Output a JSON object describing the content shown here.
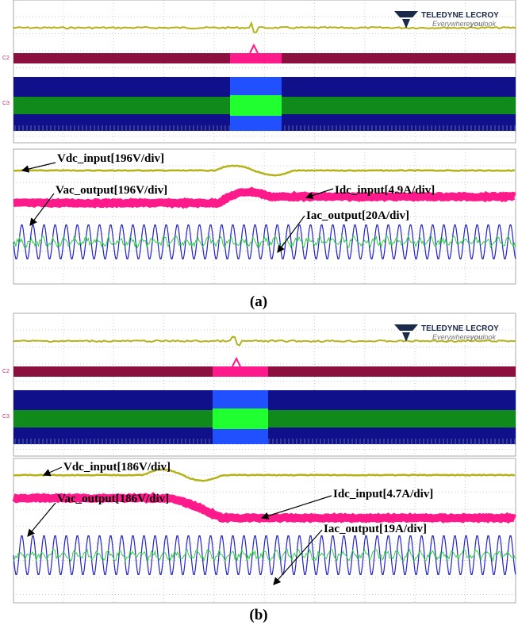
{
  "panels": [
    {
      "caption": "(a)",
      "logo": {
        "brand": "TELEDYNE LECROY",
        "tagline": [
          "Everywhere",
          "you",
          "look"
        ]
      },
      "channels": [
        "C2",
        "C3"
      ],
      "labels": [
        "Vdc_input[196V/div]",
        "Vac_output[196V/div]",
        "Idc_input[4.9A/div]",
        "Iac_output[20A/div]"
      ]
    },
    {
      "caption": "(b)",
      "logo": {
        "brand": "TELEDYNE LECROY",
        "tagline": [
          "Everywhere",
          "you",
          "look"
        ]
      },
      "channels": [
        "C2",
        "C3"
      ],
      "labels": [
        "Vdc_input[186V/div]",
        "Vac_output[186V/div]",
        "Idc_input[4.7A/div]",
        "Iac_output[19A/div]"
      ]
    }
  ]
}
